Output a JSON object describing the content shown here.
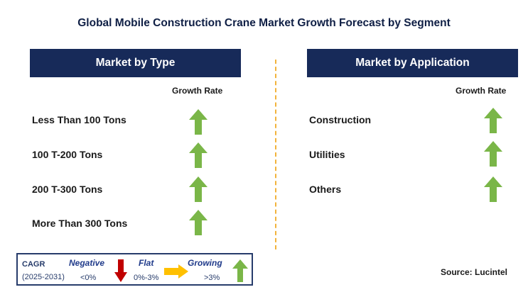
{
  "title": "Global Mobile Construction Crane Market Growth Forecast by Segment",
  "type_panel": {
    "header": "Market by Type",
    "growth_label": "Growth Rate",
    "items": [
      {
        "label": "Less Than 100 Tons",
        "trend": "growing"
      },
      {
        "label": "100 T-200 Tons",
        "trend": "growing"
      },
      {
        "label": "200 T-300 Tons",
        "trend": "growing"
      },
      {
        "label": "More Than 300 Tons",
        "trend": "growing"
      }
    ]
  },
  "application_panel": {
    "header": "Market by Application",
    "growth_label": "Growth Rate",
    "items": [
      {
        "label": "Construction",
        "trend": "growing"
      },
      {
        "label": "Utilities",
        "trend": "growing"
      },
      {
        "label": "Others",
        "trend": "growing"
      }
    ]
  },
  "legend": {
    "cagr_label": "CAGR",
    "period": "(2025-2031)",
    "negative": {
      "label": "Negative",
      "range": "<0%",
      "icon": "red-down-arrow-icon"
    },
    "flat": {
      "label": "Flat",
      "range": "0%-3%",
      "icon": "orange-right-arrow-icon"
    },
    "growing": {
      "label": "Growing",
      "range": ">3%",
      "icon": "green-up-arrow-icon"
    }
  },
  "source": "Source: Lucintel",
  "colors": {
    "header_bg": "#172a59",
    "growing": "#7ab648",
    "negative": "#c00000",
    "flat": "#ffc000",
    "divider": "#f2b33c"
  }
}
